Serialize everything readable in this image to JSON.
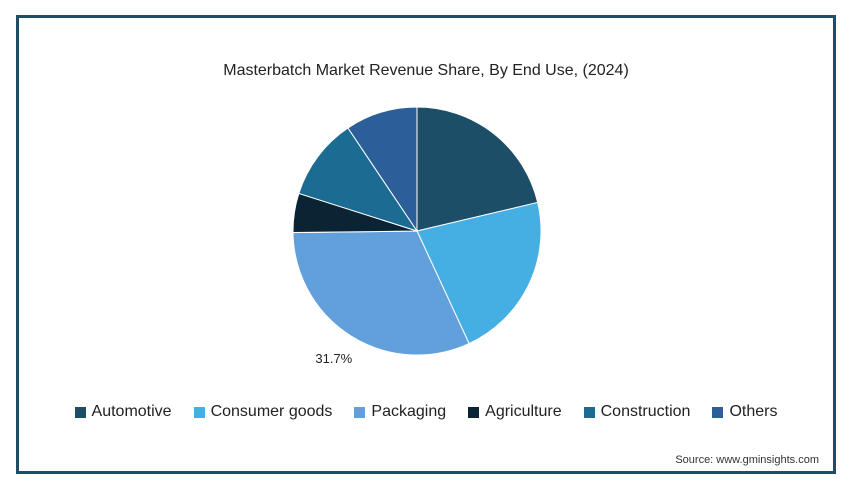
{
  "chart_data": {
    "type": "pie",
    "title": "Masterbatch Market Revenue Share, By End Use,  (2024)",
    "slices": [
      {
        "label": "Automotive",
        "value": 21.3,
        "color": "#1c4e68"
      },
      {
        "label": "Consumer goods",
        "value": 21.8,
        "color": "#45aee2"
      },
      {
        "label": "Packaging",
        "value": 31.7,
        "color": "#62a0dc",
        "data_label": "31.7%"
      },
      {
        "label": "Agriculture",
        "value": 5.1,
        "color": "#0b2433"
      },
      {
        "label": "Construction",
        "value": 10.7,
        "color": "#1b6b93"
      },
      {
        "label": "Others",
        "value": 9.4,
        "color": "#2c5f9a"
      }
    ],
    "legend_position": "bottom",
    "start_angle": "top, clockwise"
  },
  "source": "Source: www.gminsights.com"
}
